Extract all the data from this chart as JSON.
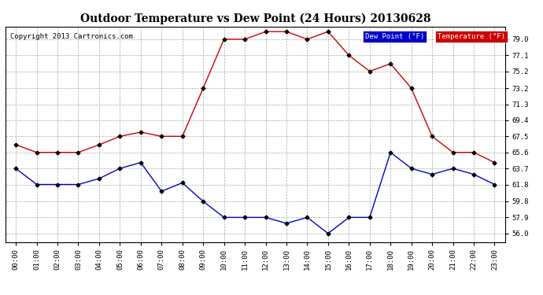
{
  "title": "Outdoor Temperature vs Dew Point (24 Hours) 20130628",
  "copyright": "Copyright 2013 Cartronics.com",
  "hours": [
    "00:00",
    "01:00",
    "02:00",
    "03:00",
    "04:00",
    "05:00",
    "06:00",
    "07:00",
    "08:00",
    "09:00",
    "10:00",
    "11:00",
    "12:00",
    "13:00",
    "14:00",
    "15:00",
    "16:00",
    "17:00",
    "18:00",
    "19:00",
    "20:00",
    "21:00",
    "22:00",
    "23:00"
  ],
  "temperature": [
    66.5,
    65.6,
    65.6,
    65.6,
    66.5,
    67.5,
    68.0,
    67.5,
    67.5,
    73.2,
    79.0,
    79.0,
    79.9,
    79.9,
    79.0,
    79.9,
    77.1,
    75.2,
    76.1,
    73.2,
    67.5,
    65.6,
    65.6,
    64.4
  ],
  "dew_point": [
    63.7,
    61.8,
    61.8,
    61.8,
    62.5,
    63.7,
    64.4,
    61.0,
    62.0,
    59.8,
    57.9,
    57.9,
    57.9,
    57.2,
    57.9,
    56.0,
    57.9,
    57.9,
    65.6,
    63.7,
    63.0,
    63.7,
    63.0,
    61.8
  ],
  "temp_color": "#cc0000",
  "dew_color": "#0000cc",
  "ylim": [
    55.0,
    80.5
  ],
  "yticks": [
    56.0,
    57.9,
    59.8,
    61.8,
    63.7,
    65.6,
    67.5,
    69.4,
    71.3,
    73.2,
    75.2,
    77.1,
    79.0
  ],
  "bg_color": "#ffffff",
  "plot_bg_color": "#ffffff",
  "grid_color": "#aaaaaa",
  "legend_dew_bg": "#0000cc",
  "legend_temp_bg": "#cc0000",
  "marker": "D",
  "marker_size": 2.5,
  "line_width": 1.0
}
